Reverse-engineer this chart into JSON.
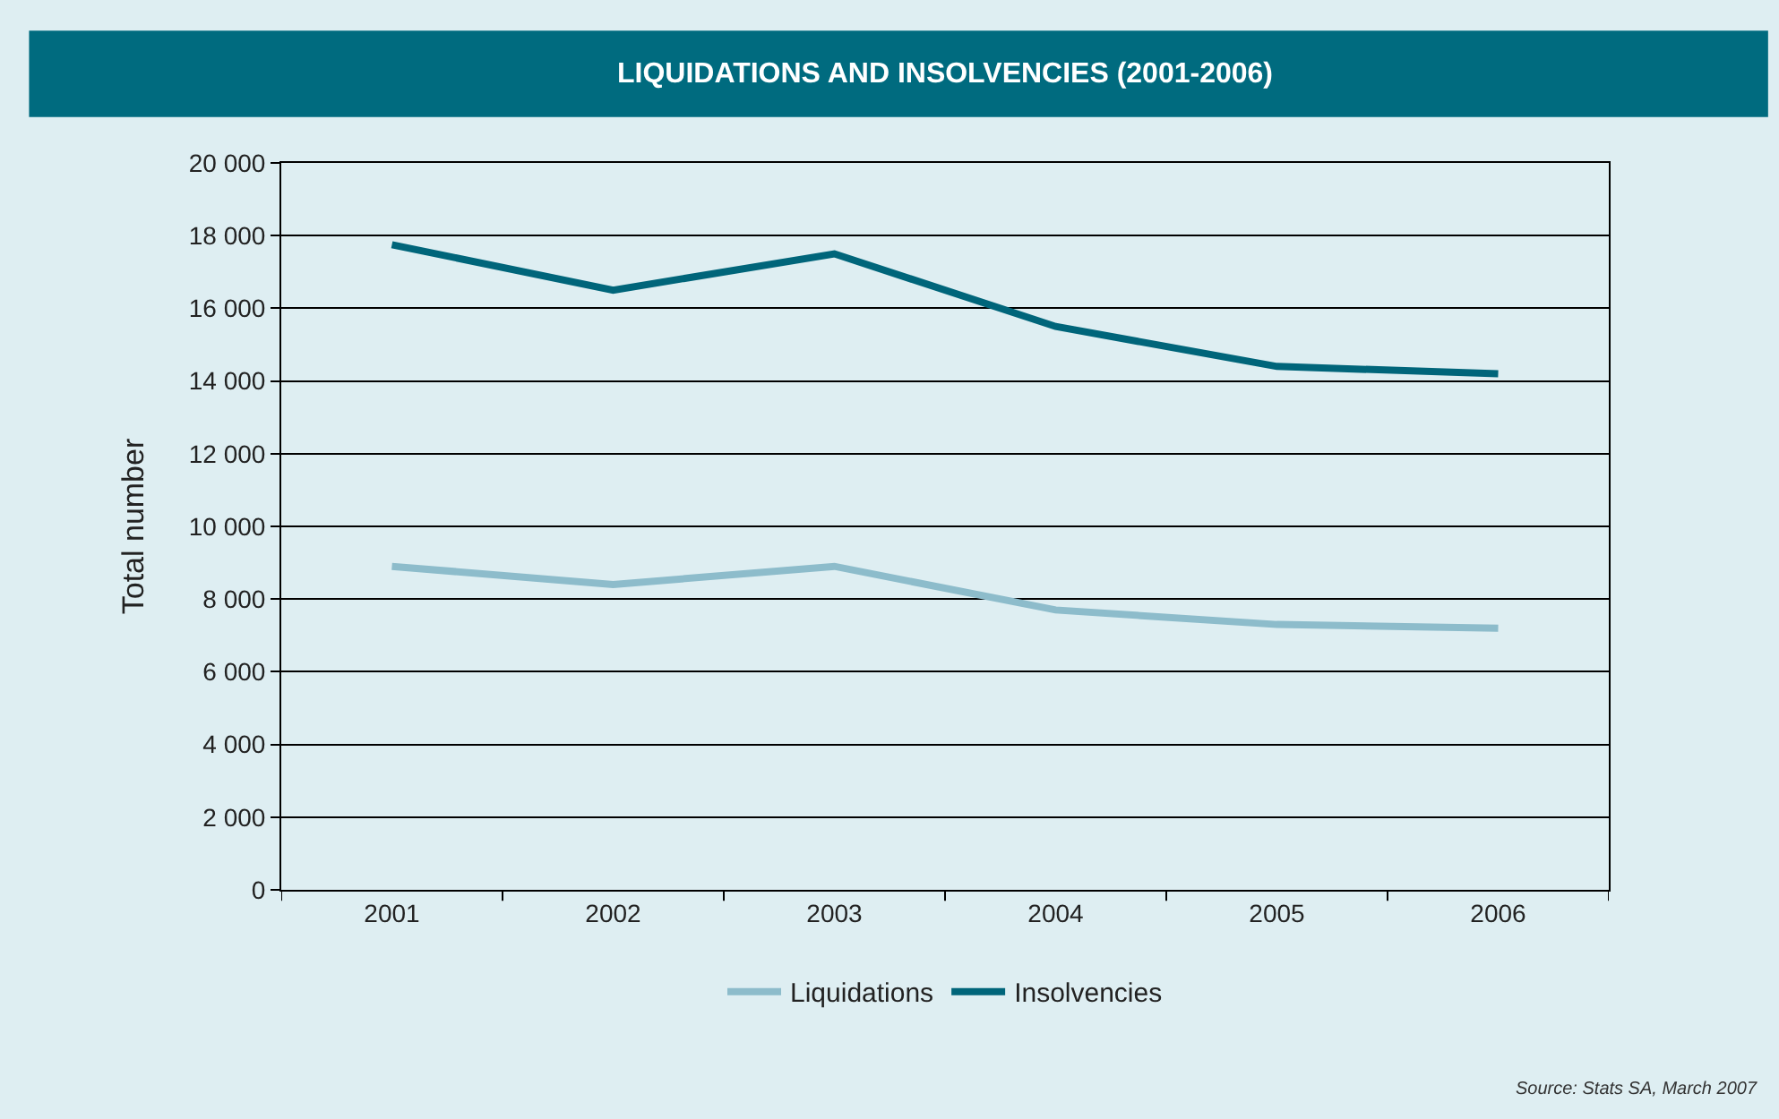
{
  "chart_data": {
    "type": "line",
    "title": "LIQUIDATIONS AND INSOLVENCIES (2001-2006)",
    "ylabel": "Total number",
    "categories": [
      "2001",
      "2002",
      "2003",
      "2004",
      "2005",
      "2006"
    ],
    "series": [
      {
        "name": "Liquidations",
        "color": "#8dbccb",
        "values": [
          8900,
          8400,
          8900,
          7700,
          7300,
          7200
        ]
      },
      {
        "name": "Insolvencies",
        "color": "#00657a",
        "values": [
          17750,
          16500,
          17500,
          15500,
          14400,
          14200
        ]
      }
    ],
    "ylim": [
      0,
      20000
    ],
    "yticks": [
      0,
      {
        "value": 2000,
        "label": "2 000"
      },
      {
        "value": 4000,
        "label": "4 000"
      },
      {
        "value": 6000,
        "label": "6 000"
      },
      {
        "value": 8000,
        "label": "8 000"
      },
      {
        "value": 10000,
        "label": "10 000"
      },
      {
        "value": 12000,
        "label": "12 000"
      },
      {
        "value": 14000,
        "label": "14 000"
      },
      {
        "value": 16000,
        "label": "16 000"
      },
      {
        "value": 18000,
        "label": "18 000"
      },
      {
        "value": 20000,
        "label": "20 000"
      }
    ],
    "grid": "y",
    "legend": "bottom",
    "marker": "none",
    "line_style": "solid",
    "annotations": [
      "Source: Stats SA, March 2007"
    ]
  }
}
